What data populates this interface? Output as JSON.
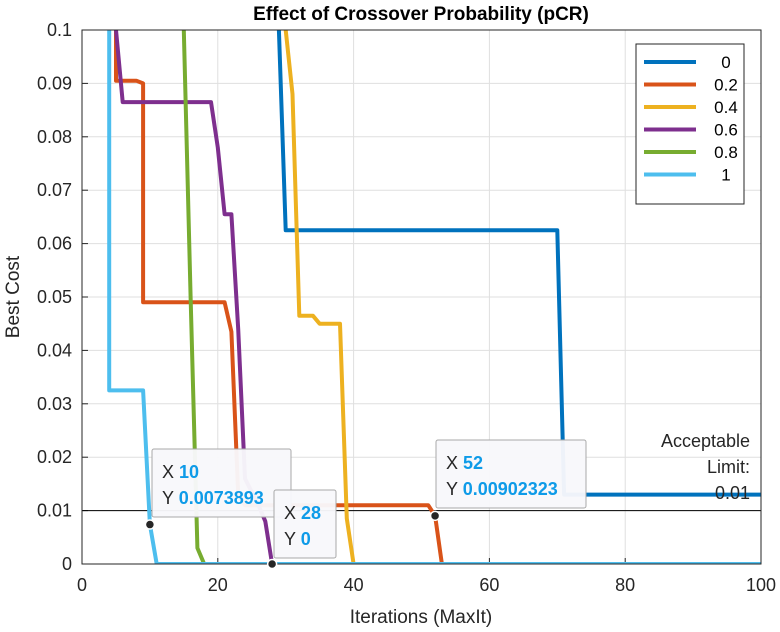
{
  "chart_data": {
    "type": "line",
    "title": "Effect of Crossover Probability (pCR)",
    "xlabel": "Iterations (MaxIt)",
    "ylabel": "Best Cost",
    "xlim": [
      0,
      100
    ],
    "ylim": [
      0,
      0.1
    ],
    "x_ticks": [
      "0",
      "20",
      "40",
      "60",
      "80",
      "100"
    ],
    "y_ticks": [
      "0",
      "0.01",
      "0.02",
      "0.03",
      "0.04",
      "0.05",
      "0.06",
      "0.07",
      "0.08",
      "0.09",
      "0.1"
    ],
    "grid": true,
    "legend_position": "top-right",
    "series": [
      {
        "name": "0",
        "color": "#0072bd",
        "points": [
          [
            29,
            0.12
          ],
          [
            29,
            0.1
          ],
          [
            30,
            0.0625
          ],
          [
            70,
            0.0625
          ],
          [
            71,
            0.013
          ],
          [
            100,
            0.013
          ]
        ]
      },
      {
        "name": "0.2",
        "color": "#d95319",
        "points": [
          [
            5,
            0.12
          ],
          [
            5,
            0.0905
          ],
          [
            8,
            0.0905
          ],
          [
            9,
            0.09
          ],
          [
            9,
            0.049
          ],
          [
            21,
            0.049
          ],
          [
            22,
            0.0435
          ],
          [
            23,
            0.013
          ],
          [
            24,
            0.011
          ],
          [
            50,
            0.011
          ],
          [
            51,
            0.011
          ],
          [
            52,
            0.00902323
          ],
          [
            53,
            0
          ],
          [
            100,
            0
          ]
        ]
      },
      {
        "name": "0.4",
        "color": "#edb120",
        "points": [
          [
            30,
            0.12
          ],
          [
            30,
            0.1
          ],
          [
            31,
            0.088
          ],
          [
            32,
            0.0465
          ],
          [
            34,
            0.0465
          ],
          [
            35,
            0.045
          ],
          [
            38,
            0.045
          ],
          [
            39,
            0.0085
          ],
          [
            40,
            0
          ],
          [
            100,
            0
          ]
        ]
      },
      {
        "name": "0.6",
        "color": "#7e2f8e",
        "points": [
          [
            5,
            0.12
          ],
          [
            5,
            0.1
          ],
          [
            6,
            0.0865
          ],
          [
            19,
            0.0865
          ],
          [
            20,
            0.078
          ],
          [
            21,
            0.0655
          ],
          [
            22,
            0.0655
          ],
          [
            23,
            0.044
          ],
          [
            24,
            0.016
          ],
          [
            26,
            0.011
          ],
          [
            27,
            0.008
          ],
          [
            28,
            0
          ],
          [
            100,
            0
          ]
        ]
      },
      {
        "name": "0.8",
        "color": "#77ac30",
        "points": [
          [
            15,
            0.12
          ],
          [
            15,
            0.1
          ],
          [
            16,
            0.05
          ],
          [
            17,
            0.003
          ],
          [
            18,
            0
          ],
          [
            100,
            0
          ]
        ]
      },
      {
        "name": "1",
        "color": "#4dbeee",
        "points": [
          [
            4,
            0.12
          ],
          [
            4,
            0.0325
          ],
          [
            9,
            0.0325
          ],
          [
            10,
            0.0073893
          ],
          [
            11,
            0
          ],
          [
            100,
            0
          ]
        ]
      }
    ],
    "reference_line": {
      "y": 0.01,
      "color": "#000000"
    },
    "annotation": {
      "line1": "Acceptable",
      "line2": "Limit:",
      "line3": "0.01"
    },
    "datatips": [
      {
        "x": 10,
        "y": 0.0073893,
        "x_label": "X",
        "y_label": "Y",
        "x_text": "10",
        "y_text": "0.0073893"
      },
      {
        "x": 28,
        "y": 0,
        "x_label": "X",
        "y_label": "Y",
        "x_text": "28",
        "y_text": "0"
      },
      {
        "x": 52,
        "y": 0.00902323,
        "x_label": "X",
        "y_label": "Y",
        "x_text": "52",
        "y_text": "0.00902323"
      }
    ]
  }
}
